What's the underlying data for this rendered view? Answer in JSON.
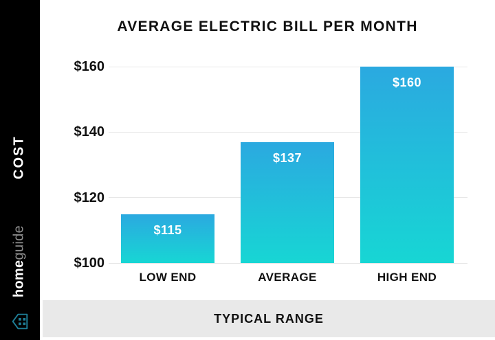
{
  "sidebar": {
    "cost_label": "COST",
    "brand_bold": "home",
    "brand_light": "guide",
    "logo_icon": "house-icon",
    "background": "#000000",
    "logo_color": "#1e7d95"
  },
  "footer": {
    "label": "TYPICAL RANGE",
    "background": "#e9e9e9"
  },
  "chart_data": {
    "type": "bar",
    "title": "AVERAGE ELECTRIC BILL PER MONTH",
    "categories": [
      "LOW END",
      "AVERAGE",
      "HIGH END"
    ],
    "values": [
      115,
      137,
      160
    ],
    "value_labels": [
      "$115",
      "$137",
      "$160"
    ],
    "xlabel": "TYPICAL RANGE",
    "ylabel": "COST",
    "ylim": [
      100,
      160
    ],
    "yticks": [
      160,
      140,
      120,
      100
    ],
    "ytick_labels": [
      "$160",
      "$140",
      "$120",
      "$100"
    ],
    "grid": true,
    "legend": "none",
    "gridline_color": "#e7e7e7",
    "bar_gradient_top": "#2ba9e0",
    "bar_gradient_bottom": "#17d6d4",
    "value_label_color": "#ffffff"
  }
}
